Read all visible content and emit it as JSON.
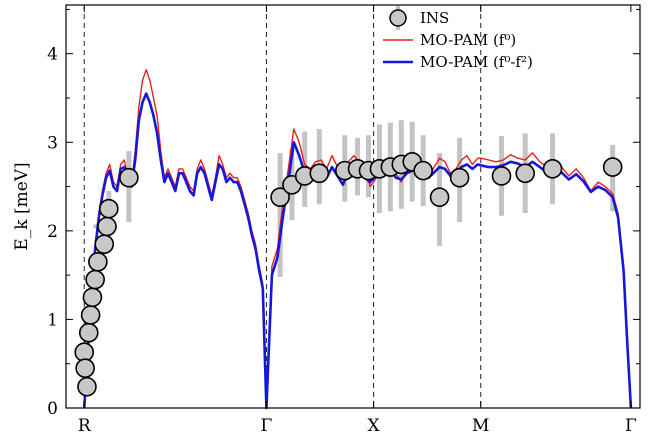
{
  "chart_data": {
    "type": "line",
    "ylabel": "E_k [meV]",
    "ylim": [
      0,
      4.55
    ],
    "yticks": [
      "0",
      "1",
      "2",
      "3",
      "4"
    ],
    "x_path_labels": [
      "R",
      "Γ",
      "X",
      "M",
      "Γ"
    ],
    "x_path_positions": [
      0,
      1.0,
      1.588,
      2.176,
      3.0
    ],
    "xlim": [
      -0.1,
      3.05
    ],
    "vertical_dashed_at": [
      0,
      1.0,
      1.588,
      2.176
    ],
    "grid": false,
    "legend_placement": "top-right",
    "colors": {
      "red": "#e8201c",
      "blue": "#1518d8",
      "ins_fill": "#c8c8c8",
      "errbar": "#c3c3c3"
    },
    "legend": [
      {
        "marker": "circle",
        "label": "INS"
      },
      {
        "marker": "line",
        "label": "MO-PAM (f⁰)"
      },
      {
        "marker": "line",
        "label": "MO-PAM (f⁰-f²)"
      }
    ],
    "series": [
      {
        "name": "MO-PAM (f⁰)",
        "color": "#e8201c",
        "x": [
          0,
          0.02,
          0.04,
          0.06,
          0.08,
          0.1,
          0.12,
          0.14,
          0.16,
          0.18,
          0.2,
          0.22,
          0.24,
          0.26,
          0.28,
          0.3,
          0.32,
          0.34,
          0.36,
          0.38,
          0.4,
          0.42,
          0.44,
          0.46,
          0.48,
          0.5,
          0.52,
          0.54,
          0.56,
          0.58,
          0.6,
          0.62,
          0.64,
          0.66,
          0.68,
          0.7,
          0.72,
          0.74,
          0.76,
          0.78,
          0.8,
          0.82,
          0.84,
          0.86,
          0.88,
          0.9,
          0.92,
          0.94,
          0.96,
          0.98,
          1.0,
          1.03,
          1.06,
          1.09,
          1.12,
          1.15,
          1.18,
          1.21,
          1.24,
          1.27,
          1.3,
          1.33,
          1.36,
          1.39,
          1.42,
          1.45,
          1.48,
          1.51,
          1.54,
          1.57,
          1.588,
          1.62,
          1.65,
          1.68,
          1.71,
          1.74,
          1.77,
          1.8,
          1.83,
          1.86,
          1.89,
          1.92,
          1.95,
          1.98,
          2.01,
          2.04,
          2.07,
          2.1,
          2.13,
          2.16,
          2.176,
          2.22,
          2.26,
          2.3,
          2.34,
          2.38,
          2.42,
          2.46,
          2.5,
          2.54,
          2.58,
          2.62,
          2.66,
          2.7,
          2.74,
          2.78,
          2.82,
          2.86,
          2.9,
          2.93,
          2.96,
          2.98,
          3.0
        ],
        "y": [
          0,
          0.7,
          1.35,
          1.85,
          2.2,
          2.45,
          2.65,
          2.75,
          2.55,
          2.5,
          2.75,
          2.8,
          2.6,
          2.55,
          2.9,
          3.4,
          3.7,
          3.82,
          3.7,
          3.5,
          3.3,
          2.9,
          2.6,
          2.7,
          2.6,
          2.5,
          2.7,
          2.7,
          2.6,
          2.5,
          2.45,
          2.7,
          2.8,
          2.7,
          2.55,
          2.4,
          2.6,
          2.85,
          2.75,
          2.6,
          2.65,
          2.6,
          2.6,
          2.5,
          2.35,
          2.2,
          2.0,
          1.85,
          1.6,
          1.4,
          0,
          1.6,
          1.8,
          2.3,
          2.7,
          3.15,
          3.0,
          2.75,
          2.7,
          2.78,
          2.8,
          2.7,
          2.85,
          2.72,
          2.6,
          2.78,
          2.85,
          2.78,
          2.7,
          2.5,
          2.55,
          2.65,
          2.75,
          2.75,
          2.65,
          2.55,
          2.7,
          2.75,
          2.8,
          2.65,
          2.6,
          2.72,
          2.82,
          2.78,
          2.65,
          2.7,
          2.8,
          2.85,
          2.75,
          2.82,
          2.82,
          2.8,
          2.78,
          2.8,
          2.86,
          2.82,
          2.8,
          2.88,
          2.78,
          2.72,
          2.8,
          2.72,
          2.62,
          2.7,
          2.6,
          2.45,
          2.55,
          2.5,
          2.42,
          2.2,
          1.6,
          0.8,
          0
        ]
      },
      {
        "name": "MO-PAM (f⁰-f²)",
        "color": "#1518d8",
        "x": [
          0,
          0.02,
          0.04,
          0.06,
          0.08,
          0.1,
          0.12,
          0.14,
          0.16,
          0.18,
          0.2,
          0.22,
          0.24,
          0.26,
          0.28,
          0.3,
          0.32,
          0.34,
          0.36,
          0.38,
          0.4,
          0.42,
          0.44,
          0.46,
          0.48,
          0.5,
          0.52,
          0.54,
          0.56,
          0.58,
          0.6,
          0.62,
          0.64,
          0.66,
          0.68,
          0.7,
          0.72,
          0.74,
          0.76,
          0.78,
          0.8,
          0.82,
          0.84,
          0.86,
          0.88,
          0.9,
          0.92,
          0.94,
          0.96,
          0.98,
          1.0,
          1.03,
          1.06,
          1.09,
          1.12,
          1.15,
          1.18,
          1.21,
          1.24,
          1.27,
          1.3,
          1.33,
          1.36,
          1.39,
          1.42,
          1.45,
          1.48,
          1.51,
          1.54,
          1.57,
          1.588,
          1.62,
          1.65,
          1.68,
          1.71,
          1.74,
          1.77,
          1.8,
          1.83,
          1.86,
          1.89,
          1.92,
          1.95,
          1.98,
          2.01,
          2.04,
          2.07,
          2.1,
          2.13,
          2.16,
          2.176,
          2.22,
          2.26,
          2.3,
          2.34,
          2.38,
          2.42,
          2.46,
          2.5,
          2.54,
          2.58,
          2.62,
          2.66,
          2.7,
          2.74,
          2.78,
          2.82,
          2.86,
          2.9,
          2.93,
          2.96,
          2.98,
          3.0
        ],
        "y": [
          0,
          0.65,
          1.3,
          1.8,
          2.15,
          2.4,
          2.6,
          2.68,
          2.5,
          2.45,
          2.7,
          2.72,
          2.55,
          2.5,
          2.8,
          3.25,
          3.45,
          3.55,
          3.45,
          3.3,
          3.1,
          2.8,
          2.55,
          2.65,
          2.55,
          2.45,
          2.65,
          2.65,
          2.55,
          2.45,
          2.4,
          2.65,
          2.72,
          2.65,
          2.5,
          2.35,
          2.55,
          2.75,
          2.7,
          2.55,
          2.6,
          2.55,
          2.55,
          2.45,
          2.3,
          2.15,
          1.95,
          1.8,
          1.55,
          1.35,
          0,
          1.5,
          1.7,
          2.15,
          2.55,
          3.0,
          2.85,
          2.65,
          2.6,
          2.7,
          2.72,
          2.6,
          2.72,
          2.62,
          2.52,
          2.68,
          2.72,
          2.68,
          2.6,
          2.55,
          2.6,
          2.62,
          2.65,
          2.7,
          2.6,
          2.58,
          2.65,
          2.68,
          2.72,
          2.62,
          2.6,
          2.66,
          2.72,
          2.7,
          2.62,
          2.66,
          2.72,
          2.75,
          2.7,
          2.75,
          2.74,
          2.72,
          2.72,
          2.74,
          2.78,
          2.76,
          2.72,
          2.78,
          2.72,
          2.66,
          2.72,
          2.66,
          2.58,
          2.64,
          2.56,
          2.44,
          2.5,
          2.46,
          2.38,
          2.15,
          1.55,
          0.75,
          0
        ]
      },
      {
        "name": "INS",
        "marker": "circle",
        "x": [
          0.0,
          0.005,
          0.015,
          0.025,
          0.035,
          0.045,
          0.06,
          0.075,
          0.11,
          0.125,
          0.135,
          0.245,
          1.075,
          1.14,
          1.21,
          1.29,
          1.43,
          1.5,
          1.56,
          1.62,
          1.68,
          1.74,
          1.8,
          1.86,
          1.95,
          2.06,
          2.29,
          2.42,
          2.57,
          2.9
        ],
        "y": [
          0.63,
          0.45,
          0.24,
          0.85,
          1.05,
          1.25,
          1.45,
          1.65,
          1.85,
          2.05,
          2.25,
          2.6,
          2.38,
          2.52,
          2.62,
          2.65,
          2.68,
          2.7,
          2.68,
          2.7,
          2.72,
          2.75,
          2.78,
          2.68,
          2.38,
          2.6,
          2.62,
          2.65,
          2.7,
          2.72
        ],
        "yerr_low": [
          0,
          0,
          0,
          0,
          0,
          0,
          0,
          0,
          0,
          0.25,
          0.2,
          0.5,
          0.9,
          0.4,
          0.35,
          0.35,
          0.35,
          0.3,
          0.3,
          0.5,
          0.5,
          0.5,
          0.45,
          0.4,
          0.55,
          0.5,
          0.45,
          0.45,
          0.4,
          0.5
        ],
        "yerr_high": [
          0,
          0,
          0,
          0,
          0,
          0,
          0,
          0,
          0,
          0.15,
          0.2,
          0.3,
          0.5,
          0.4,
          0.5,
          0.5,
          0.4,
          0.35,
          0.4,
          0.5,
          0.5,
          0.5,
          0.45,
          0.4,
          0.5,
          0.45,
          0.45,
          0.45,
          0.4,
          0.25
        ]
      }
    ]
  }
}
